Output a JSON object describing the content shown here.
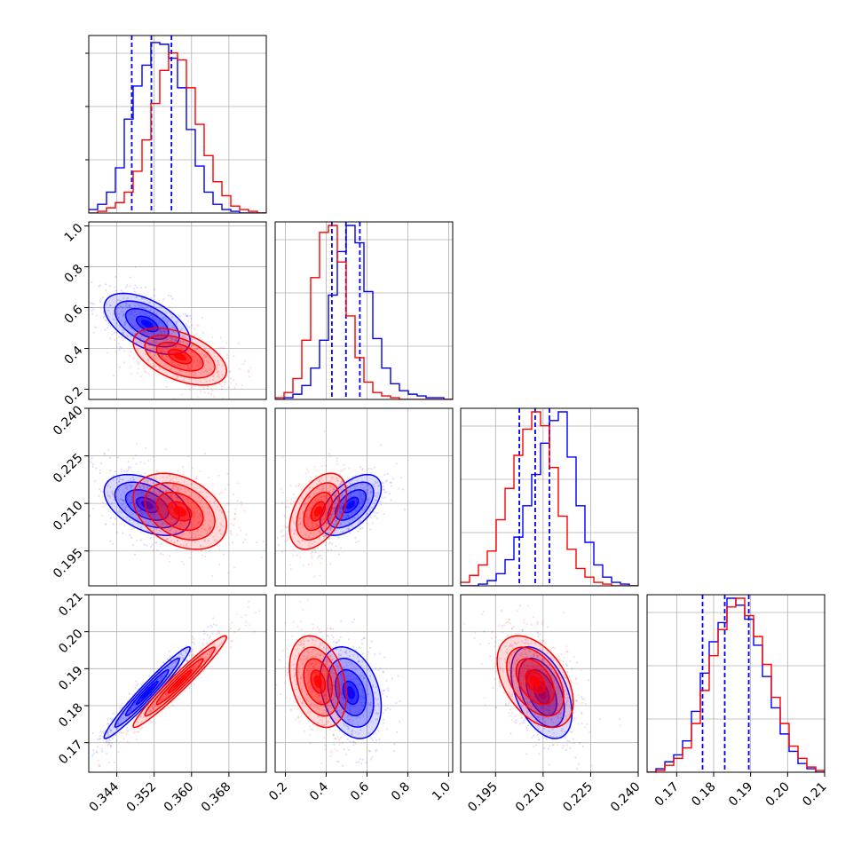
{
  "colors": {
    "blue": "#0000ff",
    "red": "#ff0000",
    "grid": "#b0b0b0",
    "axis": "#000000"
  },
  "chart_data": {
    "type": "corner",
    "grid": true,
    "parameters": [
      {
        "range": [
          0.338,
          0.376
        ],
        "ticks": [
          "0.344",
          "0.352",
          "0.360",
          "0.368"
        ]
      },
      {
        "range": [
          0.15,
          1.02
        ],
        "ticks": [
          "0.2",
          "0.4",
          "0.6",
          "0.8",
          "1.0"
        ]
      },
      {
        "range": [
          0.184,
          0.24
        ],
        "ticks": [
          "0.195",
          "0.210",
          "0.225",
          "0.240"
        ]
      },
      {
        "range": [
          0.162,
          0.21
        ],
        "ticks": [
          "0.17",
          "0.18",
          "0.19",
          "0.20",
          "0.21"
        ]
      }
    ],
    "series": [
      {
        "color": "#0000ff",
        "quantiles": [
          [
            0.3472,
            0.3514,
            0.3557
          ],
          [
            0.428,
            0.497,
            0.565
          ],
          [
            0.2025,
            0.2075,
            0.212
          ],
          [
            0.177,
            0.183,
            0.1895
          ]
        ],
        "histograms": [
          [
            2,
            5,
            12,
            26,
            54,
            73,
            85,
            98,
            97,
            89,
            72,
            48,
            27,
            12,
            5,
            2,
            1,
            0,
            0,
            0
          ],
          [
            0,
            1,
            3,
            8,
            18,
            34,
            60,
            85,
            100,
            90,
            62,
            35,
            18,
            9,
            5,
            3,
            2,
            1,
            1,
            0
          ],
          [
            0,
            0,
            1,
            3,
            7,
            15,
            28,
            46,
            64,
            82,
            95,
            100,
            74,
            46,
            25,
            12,
            5,
            2,
            1,
            0
          ],
          [
            0,
            2,
            6,
            10,
            18,
            35,
            57,
            75,
            86,
            100,
            96,
            88,
            73,
            55,
            37,
            22,
            12,
            5,
            2,
            0
          ]
        ],
        "centers": [
          0.3505,
          0.52,
          0.2095,
          0.1835
        ],
        "sigma": [
          0.0046,
          0.075,
          0.0048,
          0.0062
        ],
        "rho": [
          [
            1,
            -0.55,
            -0.45,
            0.97
          ],
          [
            -0.55,
            1,
            0.55,
            -0.3
          ],
          [
            -0.45,
            0.55,
            1,
            -0.45
          ],
          [
            0.97,
            -0.3,
            -0.45,
            1
          ]
        ]
      },
      {
        "color": "#ff0000",
        "histograms": [
          [
            0,
            1,
            3,
            6,
            12,
            24,
            42,
            63,
            82,
            92,
            88,
            72,
            51,
            33,
            18,
            10,
            4,
            2,
            1,
            0
          ],
          [
            1,
            4,
            12,
            34,
            70,
            96,
            100,
            79,
            48,
            24,
            10,
            4,
            2,
            1,
            0,
            0,
            0,
            0,
            0,
            0
          ],
          [
            2,
            6,
            12,
            20,
            38,
            56,
            75,
            90,
            100,
            92,
            68,
            40,
            21,
            10,
            5,
            2,
            1,
            0,
            0,
            0
          ],
          [
            0,
            1,
            4,
            8,
            14,
            28,
            47,
            67,
            82,
            95,
            100,
            90,
            78,
            62,
            43,
            28,
            15,
            8,
            3,
            1
          ]
        ],
        "centers": [
          0.3575,
          0.36,
          0.2075,
          0.1865
        ],
        "sigma": [
          0.005,
          0.07,
          0.006,
          0.0062
        ],
        "rho": [
          [
            1,
            -0.5,
            -0.35,
            0.97
          ],
          [
            -0.5,
            1,
            0.45,
            -0.3
          ],
          [
            -0.35,
            0.45,
            1,
            -0.45
          ],
          [
            0.97,
            -0.3,
            -0.45,
            1
          ]
        ]
      }
    ]
  }
}
